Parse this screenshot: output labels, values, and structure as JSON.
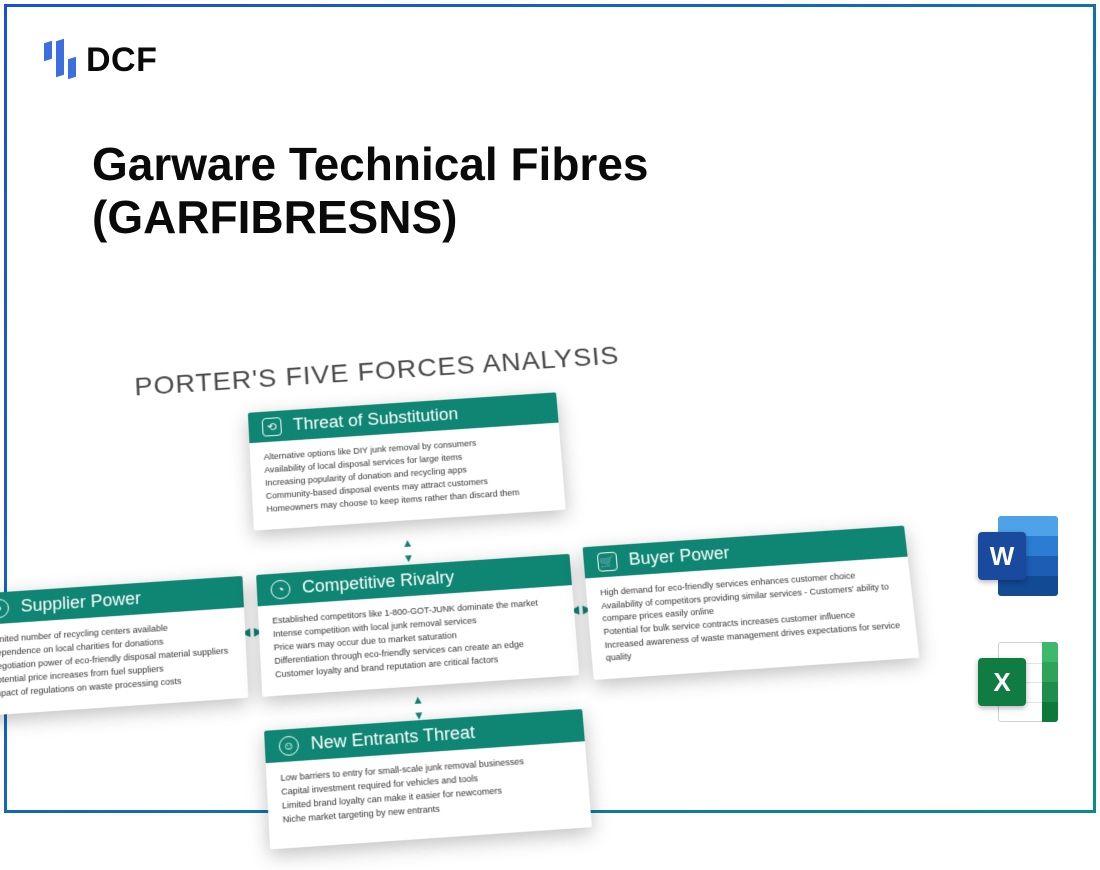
{
  "logo": {
    "text": "DCF"
  },
  "title": {
    "line1": "Garware Technical Fibres",
    "line2": "(GARFIBRESNS)"
  },
  "diagram": {
    "heading": "PORTER'S FIVE FORCES ANALYSIS",
    "card_header_bg": "#0f8573",
    "cards": {
      "substitution": {
        "title": "Threat of Substitution",
        "items": [
          "Alternative options like DIY junk removal by consumers",
          "Availability of local disposal services for large items",
          "Increasing popularity of donation and recycling apps",
          "Community-based disposal events may attract customers",
          "Homeowners may choose to keep items rather than discard them"
        ]
      },
      "supplier": {
        "title": "Supplier Power",
        "items": [
          "Limited number of recycling centers available",
          "Dependence on local charities for donations",
          "Negotiation power of eco-friendly disposal material suppliers",
          "Potential price increases from fuel suppliers",
          "Impact of regulations on waste processing costs"
        ]
      },
      "rivalry": {
        "title": "Competitive Rivalry",
        "items": [
          "Established competitors like 1-800-GOT-JUNK dominate the market",
          "Intense competition with local junk removal services",
          "Price wars may occur due to market saturation",
          "Differentiation through eco-friendly services can create an edge",
          "Customer loyalty and brand reputation are critical factors"
        ]
      },
      "buyer": {
        "title": "Buyer Power",
        "items": [
          "High demand for eco-friendly services enhances customer choice",
          "Availability of competitors providing similar services - Customers' ability to compare prices easily online",
          "Potential for bulk service contracts increases customer influence",
          "Increased awareness of waste management drives expectations for service quality"
        ]
      },
      "entrants": {
        "title": "New Entrants Threat",
        "items": [
          "Low barriers to entry for small-scale junk removal businesses",
          "Capital investment required for vehicles and tools",
          "Limited brand loyalty can make it easier for newcomers",
          "Niche market targeting by new entrants"
        ]
      }
    }
  },
  "apps": {
    "word": "W",
    "excel": "X"
  }
}
